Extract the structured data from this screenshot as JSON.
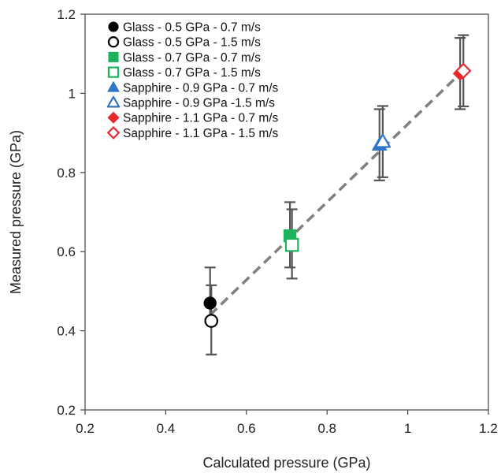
{
  "chart_data": {
    "type": "scatter",
    "title": "",
    "xlabel": "Calculated pressure (GPa)",
    "ylabel": "Measured pressure (GPa)",
    "xlim": [
      0.2,
      1.2
    ],
    "ylim": [
      0.2,
      1.2
    ],
    "xticks": [
      "0.2",
      "0.4",
      "0.6",
      "0.8",
      "1",
      "1.2"
    ],
    "yticks": [
      "0.2",
      "0.4",
      "0.6",
      "0.8",
      "1",
      "1.2"
    ],
    "grid": false,
    "legend_position": "top-left",
    "fit_line": {
      "style": "dashed",
      "color": "#808080",
      "x": [
        0.51,
        1.13
      ],
      "y": [
        0.44,
        1.05
      ]
    },
    "series": [
      {
        "name": "Glass - 0.5 GPa - 0.7 m/s",
        "marker": "circle",
        "filled": true,
        "color": "#000000",
        "x": 0.51,
        "y": 0.47,
        "err_low": 0.04,
        "err_high": 0.09
      },
      {
        "name": "Glass - 0.5 GPa - 1.5 m/s",
        "marker": "circle",
        "filled": false,
        "color": "#000000",
        "x": 0.513,
        "y": 0.425,
        "err_low": 0.085,
        "err_high": 0.09
      },
      {
        "name": "Glass - 0.7 GPa - 0.7 m/s",
        "marker": "square",
        "filled": true,
        "color": "#1db35c",
        "x": 0.708,
        "y": 0.64,
        "err_low": 0.08,
        "err_high": 0.085
      },
      {
        "name": "Glass - 0.7 GPa - 1.5 m/s",
        "marker": "square",
        "filled": false,
        "color": "#1db35c",
        "x": 0.713,
        "y": 0.617,
        "err_low": 0.085,
        "err_high": 0.09
      },
      {
        "name": "Sapphire - 0.9 GPa - 0.7 m/s",
        "marker": "triangle",
        "filled": true,
        "color": "#2e75c8",
        "x": 0.93,
        "y": 0.87,
        "err_low": 0.09,
        "err_high": 0.09
      },
      {
        "name": "Sapphire - 0.9 GPa -1.5 m/s",
        "marker": "triangle",
        "filled": false,
        "color": "#2e75c8",
        "x": 0.938,
        "y": 0.878,
        "err_low": 0.09,
        "err_high": 0.09
      },
      {
        "name": "Sapphire - 1.1 GPa - 0.7 m/s",
        "marker": "diamond",
        "filled": true,
        "color": "#e8282b",
        "x": 1.13,
        "y": 1.05,
        "err_low": 0.09,
        "err_high": 0.09
      },
      {
        "name": "Sapphire - 1.1 GPa - 1.5 m/s",
        "marker": "diamond",
        "filled": false,
        "color": "#e8282b",
        "x": 1.138,
        "y": 1.057,
        "err_low": 0.09,
        "err_high": 0.09
      }
    ]
  }
}
